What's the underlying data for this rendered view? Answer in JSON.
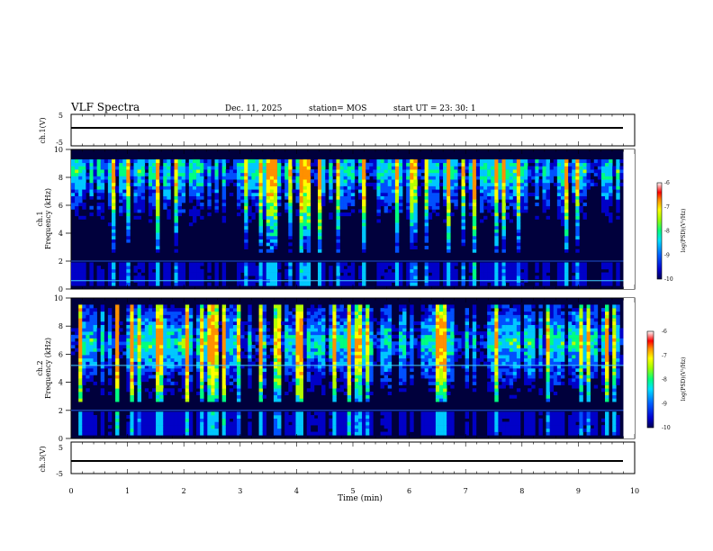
{
  "header": {
    "title": "VLF Spectra",
    "date": "Dec. 11, 2025",
    "station": "station= MOS",
    "start": "start  UT =   23: 30: 1"
  },
  "chart_data": [
    {
      "type": "line",
      "name": "ch1-waveform",
      "ylabel": "ch.1(V)",
      "ylim": [
        -5,
        5
      ],
      "ytick_labels": [
        "5",
        "-5"
      ],
      "xlim": [
        0,
        10
      ],
      "x": [
        0,
        9.8
      ],
      "y": [
        0,
        0
      ]
    },
    {
      "type": "heatmap",
      "name": "ch1-spectrogram",
      "ylabel_line1": "ch.1",
      "ylabel_line2": "Frequency (kHz)",
      "ylim": [
        0,
        10
      ],
      "ytick_labels": [
        "0",
        "2",
        "4",
        "6",
        "8",
        "10"
      ],
      "xlim": [
        0,
        10
      ],
      "data_x_end": 9.8,
      "band_kHz": [
        2.5,
        9.2
      ],
      "peak_kHz": 8.4,
      "line_kHz": 0.6,
      "colorbar": {
        "label": "log(PSD)(V²/Hz)",
        "ticks": [
          "-6",
          "-7",
          "-8",
          "-9",
          "-10"
        ],
        "range": [
          -10,
          -6
        ]
      }
    },
    {
      "type": "heatmap",
      "name": "ch2-spectrogram",
      "ylabel_line1": "ch.2",
      "ylabel_line2": "Frequency (kHz)",
      "ylim": [
        0,
        10
      ],
      "ytick_labels": [
        "0",
        "2",
        "4",
        "6",
        "8",
        "10"
      ],
      "xlim": [
        0,
        10
      ],
      "data_x_end": 9.8,
      "band_kHz": [
        2.5,
        9.5
      ],
      "peak_kHz": 6.8,
      "line_kHz": 5.2,
      "colorbar": {
        "label": "log(PSD)(V²/Hz)",
        "ticks": [
          "-6",
          "-7",
          "-8",
          "-9",
          "-10"
        ],
        "range": [
          -10,
          -6
        ]
      }
    },
    {
      "type": "line",
      "name": "ch3-waveform",
      "ylabel": "ch.3(V)",
      "ylim": [
        -5,
        5
      ],
      "ytick_labels": [
        "5",
        "-5"
      ],
      "xlim": [
        0,
        10
      ],
      "xlabel": "Time  (min)",
      "xtick_labels": [
        "0",
        "1",
        "2",
        "3",
        "4",
        "5",
        "6",
        "7",
        "8",
        "9",
        "10"
      ],
      "x": [
        0,
        9.8
      ],
      "y": [
        0,
        0
      ]
    }
  ],
  "colors": {
    "background": "#000000",
    "axis": "#000000",
    "colormap": [
      "#00004a",
      "#0000c8",
      "#0050ff",
      "#00c8ff",
      "#00ff80",
      "#b4ff00",
      "#ffff00",
      "#ff9000",
      "#ff0000",
      "#ffffff"
    ]
  }
}
